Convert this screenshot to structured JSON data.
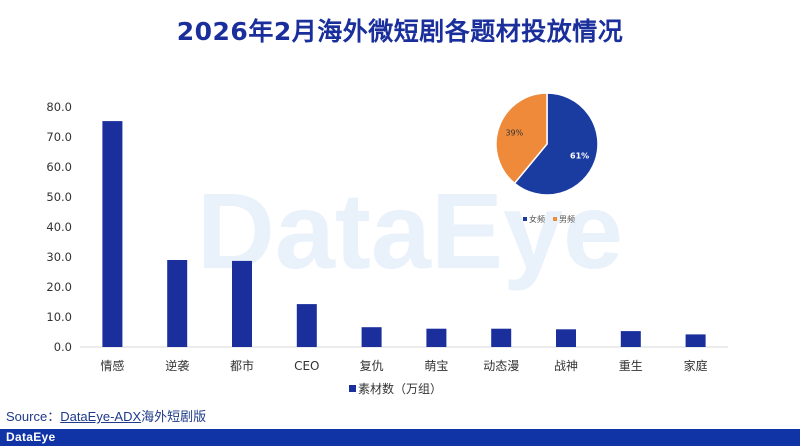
{
  "title": "2026年2月海外微短剧各题材投放情况",
  "watermark": "DataEye",
  "source_prefix": "Source：",
  "source_link": "DataEye-ADX",
  "source_suffix": "海外短剧版",
  "footer_logo": "DataEye",
  "colors": {
    "bar": "#1a2f9c",
    "female": "#1a3ba0",
    "male": "#ee8a3a",
    "title": "#1a2f9c"
  },
  "chart_data": [
    {
      "type": "bar",
      "categories": [
        "情感",
        "逆袭",
        "都市",
        "CEO",
        "复仇",
        "萌宝",
        "动态漫",
        "战神",
        "重生",
        "家庭"
      ],
      "series": [
        {
          "name": "素材数（万组）",
          "values": [
            75.3,
            29.0,
            28.7,
            14.3,
            6.6,
            6.1,
            6.1,
            5.9,
            5.3,
            4.2
          ]
        }
      ],
      "yticks": [
        "80.0",
        "70.0",
        "60.0",
        "50.0",
        "40.0",
        "30.0",
        "20.0",
        "10.0",
        "0.0"
      ],
      "ylim": [
        0,
        80
      ],
      "legend": "bottom",
      "grid": false
    },
    {
      "type": "pie",
      "slices": [
        {
          "name": "女频",
          "value": 61,
          "label": "61%"
        },
        {
          "name": "男频",
          "value": 39,
          "label": "39%"
        }
      ],
      "legend": "bottom"
    }
  ]
}
